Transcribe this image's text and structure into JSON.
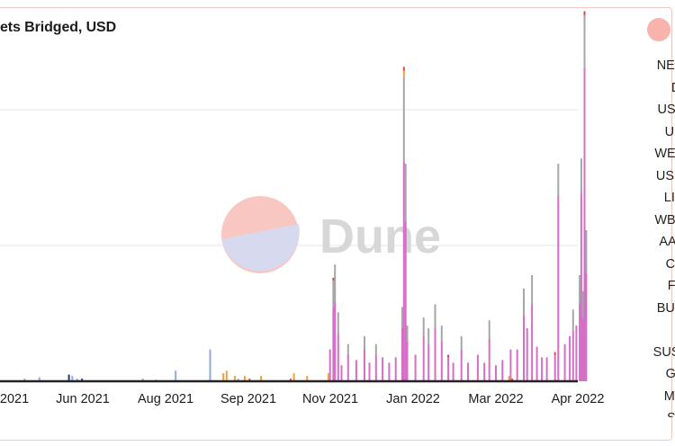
{
  "title": "ets Bridged, USD",
  "legend": {
    "items": [
      "NEAR",
      "DAI",
      "USDT",
      "UDC",
      "WETH",
      "USDC",
      "LINK",
      "WBTC",
      "AAVE",
      "CRV",
      "FXS",
      "BUSD",
      "",
      "SUSHI",
      "GRT",
      "MKR",
      "SOL"
    ]
  },
  "watermark": "Dune",
  "colors": {
    "main": "#d46ec6",
    "gray": "#a6a6a6",
    "orange": "#f0a040",
    "blue": "#93a8e0",
    "red": "#e8433b",
    "navy": "#1f3a7a"
  },
  "chart_data": {
    "type": "bar",
    "stacked": true,
    "title": "ets Bridged, USD",
    "x_ticks": [
      "2021",
      "Jun 2021",
      "Aug 2021",
      "Sep 2021",
      "Nov 2021",
      "Jan 2022",
      "Mar 2022",
      "Apr 2022"
    ],
    "x_start": "2021-04-16",
    "x_end": "2022-04-10",
    "grid": true,
    "legend_position": "right",
    "series": [
      {
        "name": "NEAR",
        "color": "#d46ec6",
        "points": [
          [
            "2021-11-03",
            12
          ],
          [
            "2021-11-05",
            28
          ],
          [
            "2021-11-06",
            30
          ],
          [
            "2021-11-08",
            18
          ],
          [
            "2021-11-10",
            6
          ],
          [
            "2021-11-14",
            10
          ],
          [
            "2021-11-19",
            8
          ],
          [
            "2021-11-24",
            12
          ],
          [
            "2021-11-27",
            7
          ],
          [
            "2021-12-01",
            10
          ],
          [
            "2021-12-05",
            9
          ],
          [
            "2021-12-09",
            7
          ],
          [
            "2021-12-13",
            9
          ],
          [
            "2021-12-17",
            20
          ],
          [
            "2021-12-18",
            83
          ],
          [
            "2021-12-19",
            60
          ],
          [
            "2021-12-20",
            15
          ],
          [
            "2021-12-25",
            10
          ],
          [
            "2021-12-30",
            17
          ],
          [
            "2022-01-02",
            14
          ],
          [
            "2022-01-06",
            20
          ],
          [
            "2022-01-10",
            15
          ],
          [
            "2022-01-14",
            9
          ],
          [
            "2022-01-17",
            7
          ],
          [
            "2022-01-22",
            12
          ],
          [
            "2022-01-26",
            7
          ],
          [
            "2022-02-01",
            10
          ],
          [
            "2022-02-05",
            7
          ],
          [
            "2022-02-08",
            16
          ],
          [
            "2022-02-12",
            6
          ],
          [
            "2022-02-16",
            8
          ],
          [
            "2022-02-21",
            12
          ],
          [
            "2022-02-25",
            12
          ],
          [
            "2022-03-01",
            25
          ],
          [
            "2022-03-03",
            20
          ],
          [
            "2022-03-06",
            29
          ],
          [
            "2022-03-09",
            13
          ],
          [
            "2022-03-12",
            9
          ],
          [
            "2022-03-15",
            9
          ],
          [
            "2022-03-20",
            10
          ],
          [
            "2022-03-22",
            70
          ],
          [
            "2022-03-26",
            14
          ],
          [
            "2022-03-29",
            17
          ],
          [
            "2022-03-31",
            19
          ],
          [
            "2022-04-02",
            21
          ],
          [
            "2022-04-04",
            29
          ],
          [
            "2022-04-05",
            71
          ],
          [
            "2022-04-06",
            24
          ],
          [
            "2022-04-07",
            118
          ],
          [
            "2022-04-08",
            41
          ]
        ]
      },
      {
        "name": "DAI",
        "color": "#a6a6a6",
        "points": [
          [
            "2021-11-05",
            10
          ],
          [
            "2021-11-06",
            14
          ],
          [
            "2021-11-08",
            8
          ],
          [
            "2021-11-14",
            4
          ],
          [
            "2021-11-24",
            5
          ],
          [
            "2021-12-01",
            4
          ],
          [
            "2021-12-17",
            8
          ],
          [
            "2021-12-18",
            32
          ],
          [
            "2021-12-19",
            22
          ],
          [
            "2021-12-20",
            6
          ],
          [
            "2021-12-30",
            7
          ],
          [
            "2022-01-02",
            6
          ],
          [
            "2022-01-06",
            9
          ],
          [
            "2022-01-10",
            6
          ],
          [
            "2022-01-22",
            5
          ],
          [
            "2022-02-08",
            7
          ],
          [
            "2022-03-01",
            10
          ],
          [
            "2022-03-06",
            11
          ],
          [
            "2022-03-22",
            12
          ],
          [
            "2022-03-31",
            8
          ],
          [
            "2022-04-04",
            11
          ],
          [
            "2022-04-05",
            13
          ],
          [
            "2022-04-06",
            10
          ],
          [
            "2022-04-07",
            20
          ],
          [
            "2022-04-08",
            16
          ]
        ]
      },
      {
        "name": "USDT",
        "color": "#f0a040",
        "points": [
          [
            "2021-08-30",
            3
          ],
          [
            "2021-09-01",
            4
          ],
          [
            "2021-09-06",
            2
          ],
          [
            "2021-09-12",
            2
          ],
          [
            "2021-09-22",
            2
          ],
          [
            "2021-10-12",
            3
          ],
          [
            "2021-10-20",
            2
          ],
          [
            "2021-11-02",
            3
          ],
          [
            "2021-12-18",
            2
          ],
          [
            "2022-02-20",
            2
          ]
        ]
      },
      {
        "name": "USDC",
        "color": "#93a8e0",
        "points": [
          [
            "2021-05-01",
            1
          ],
          [
            "2021-05-10",
            1.5
          ],
          [
            "2021-05-30",
            2
          ],
          [
            "2021-06-02",
            1
          ],
          [
            "2021-07-12",
            1
          ],
          [
            "2021-08-01",
            4
          ],
          [
            "2021-08-22",
            12
          ],
          [
            "2021-09-08",
            1
          ]
        ]
      },
      {
        "name": "WETH",
        "color": "#e8433b",
        "points": [
          [
            "2021-09-15",
            1
          ],
          [
            "2021-10-10",
            1
          ],
          [
            "2021-11-05",
            1
          ],
          [
            "2021-12-18",
            1.5
          ],
          [
            "2022-01-14",
            1
          ],
          [
            "2022-02-22",
            1
          ],
          [
            "2022-03-20",
            1
          ],
          [
            "2022-04-07",
            1.5
          ]
        ]
      },
      {
        "name": "LINK",
        "color": "#1f3a7a",
        "points": [
          [
            "2021-05-28",
            2.5
          ],
          [
            "2021-06-05",
            1
          ],
          [
            "2021-07-20",
            0.5
          ]
        ]
      }
    ]
  }
}
